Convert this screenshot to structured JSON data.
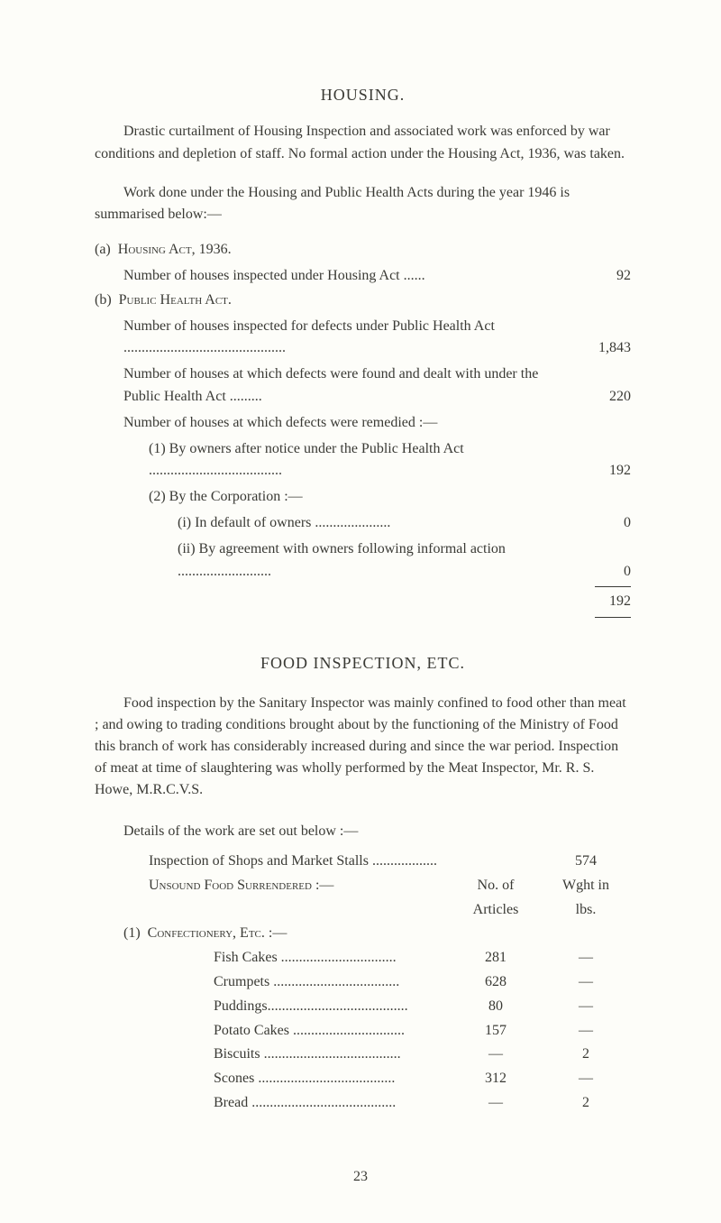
{
  "housing": {
    "title": "HOUSING.",
    "intro": "Drastic curtailment of Housing Inspection and associated work was enforced by war conditions and depletion of staff. No formal action under the Housing Act, 1936, was taken.",
    "sub": "Work done under the Housing and Public Health Acts during the year 1946 is summarised below:—",
    "a_label": "(a)",
    "a_text": "Housing Act, 1936.",
    "a_sub": "Number of houses inspected under Housing Act ......",
    "a_val": "92",
    "b_label": "(b)",
    "b_text": "Public Health Act.",
    "b_sub1": "Number of houses inspected for defects under Public Health Act .............................................",
    "b_val1": "1,843",
    "b_sub2": "Number of houses at which defects were found and dealt with under the Public Health Act .........",
    "b_val2": "220",
    "b_sub3": "Number of houses at which defects were remedied :—",
    "b_1_label": "(1) By owners after notice under the Public Health Act .....................................",
    "b_1_val": "192",
    "b_2_label": "(2) By the Corporation :—",
    "b_2_i": "(i) In default of owners .....................",
    "b_2_i_val": "0",
    "b_2_ii": "(ii) By agreement with owners following informal action ..........................",
    "b_2_ii_val": "0",
    "total": "192"
  },
  "food": {
    "title": "FOOD INSPECTION, ETC.",
    "para": "Food inspection by the Sanitary Inspector was mainly confined to food other than meat ; and owing to trading conditions brought about by the functioning of the Ministry of Food this branch of work has considerably increased during and since the war period. Inspection of meat at time of slaughtering was wholly performed by the Meat Inspector, Mr. R. S. Howe, M.R.C.V.S.",
    "details": "Details of the work are set out below :—",
    "inspection_label": "Inspection of Shops and Market Stalls ..................",
    "inspection_val": "574",
    "unsound_label": "Unsound Food Surrendered :—",
    "col_no": "No. of",
    "col_articles": "Articles",
    "col_wght": "Wght in",
    "col_lbs": "lbs.",
    "conf_label": "(1) Confectionery, Etc. :—",
    "rows": [
      {
        "label": "Fish Cakes ................................",
        "articles": "281",
        "wght": "—"
      },
      {
        "label": "Crumpets ...................................",
        "articles": "628",
        "wght": "—"
      },
      {
        "label": "Puddings.......................................",
        "articles": "80",
        "wght": "—"
      },
      {
        "label": "Potato Cakes ...............................",
        "articles": "157",
        "wght": "—"
      },
      {
        "label": "Biscuits ......................................",
        "articles": "—",
        "wght": "2"
      },
      {
        "label": "Scones ......................................",
        "articles": "312",
        "wght": "—"
      },
      {
        "label": "Bread ........................................",
        "articles": "—",
        "wght": "2"
      }
    ]
  },
  "page": "23"
}
